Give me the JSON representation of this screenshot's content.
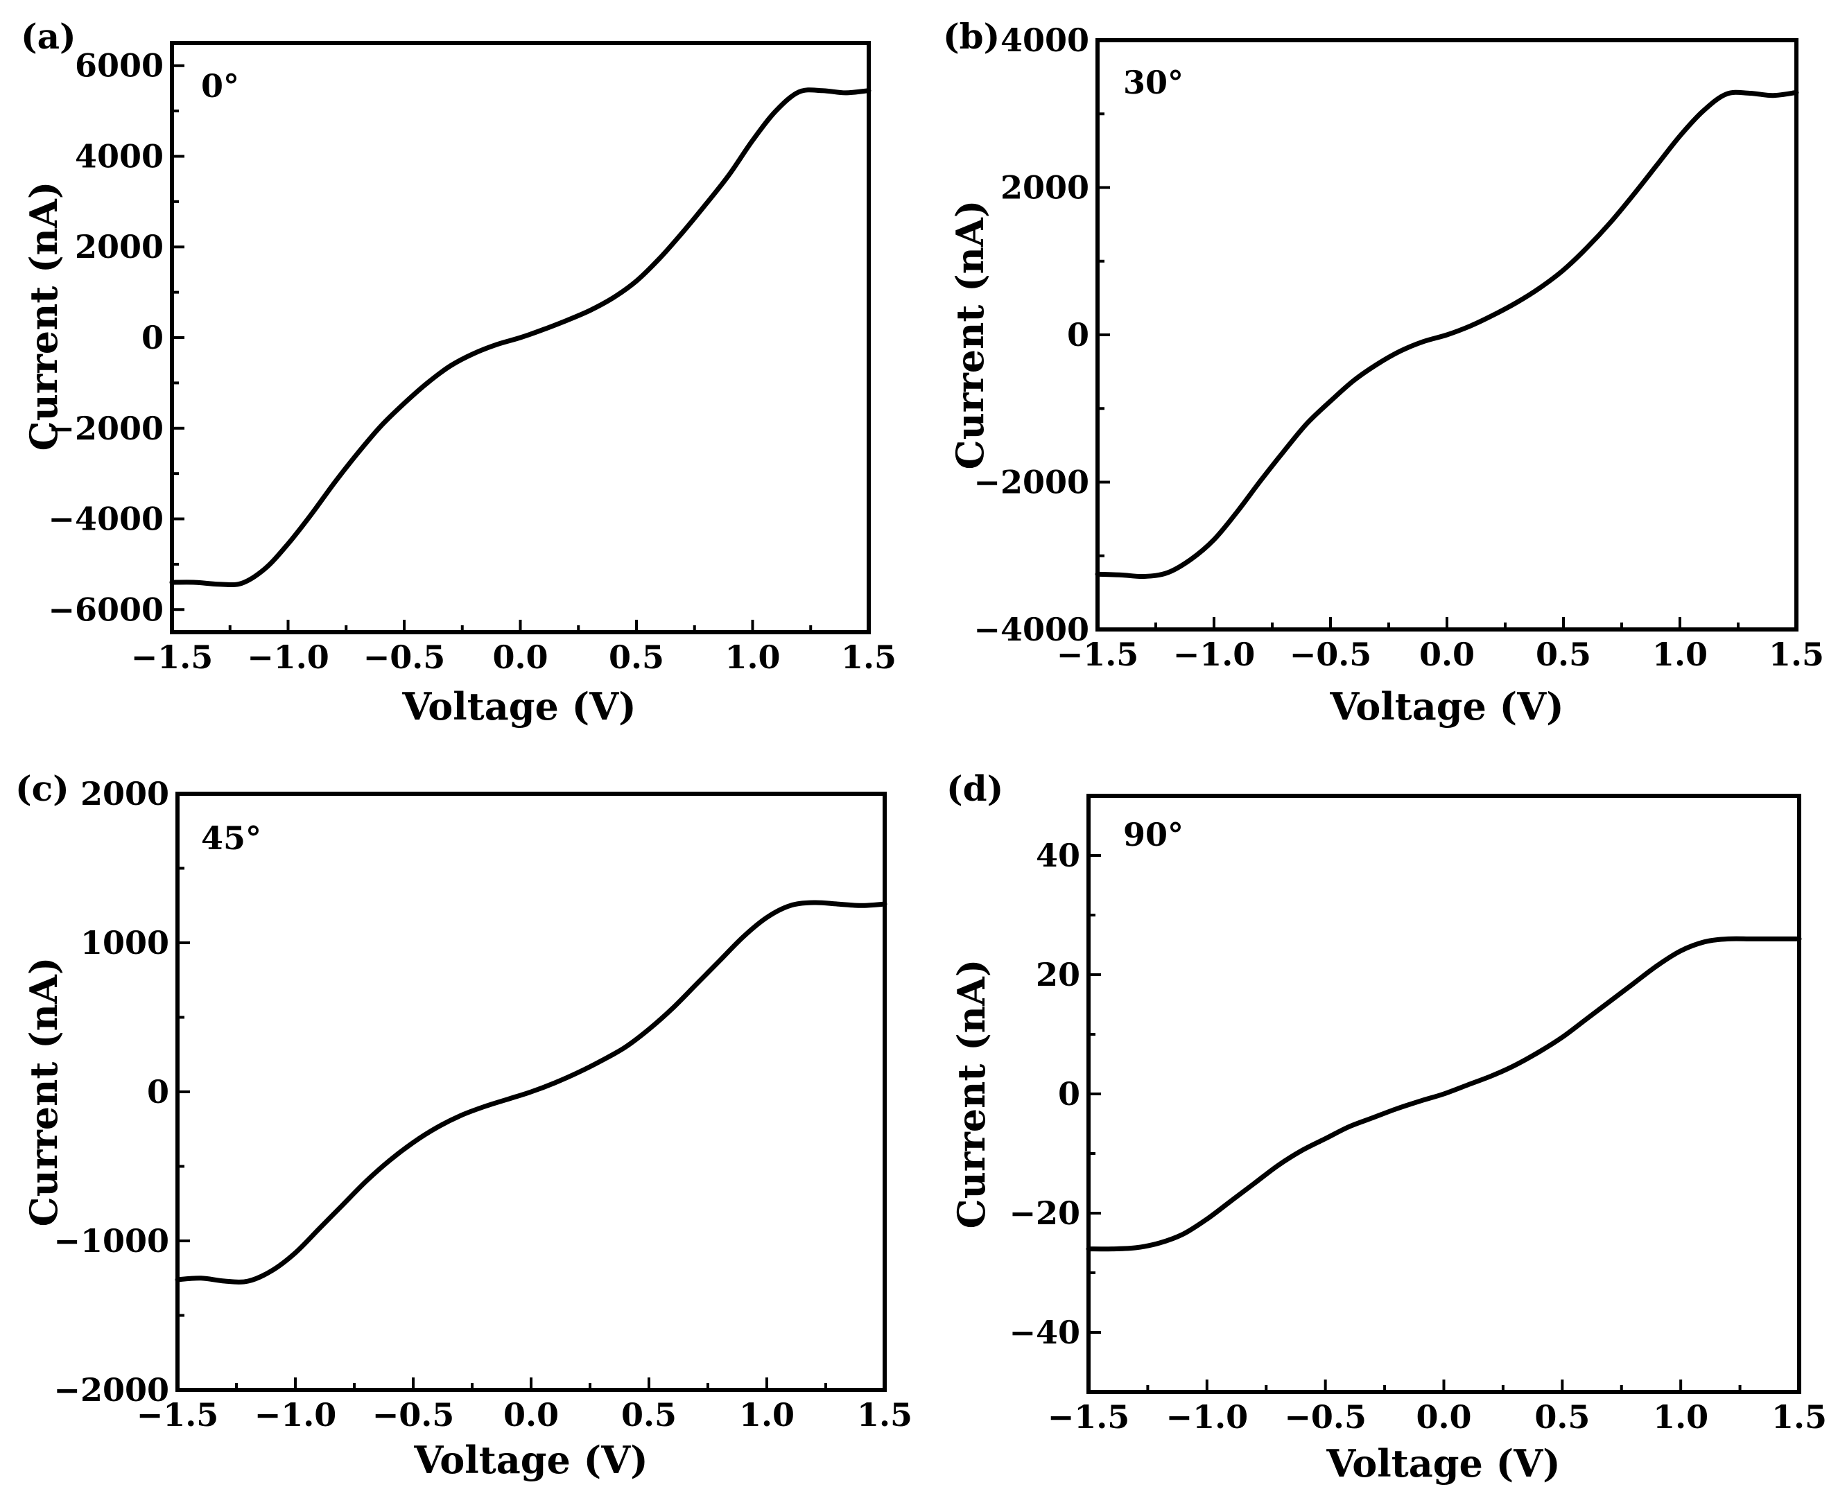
{
  "chart_data": [
    {
      "type": "line",
      "panel": "(a)",
      "annotation": "0°",
      "xlabel": "Voltage (V)",
      "ylabel": "Current (nA)",
      "xlim": [
        -1.5,
        1.5
      ],
      "ylim": [
        -6500,
        6500
      ],
      "xticks": [
        -1.5,
        -1.0,
        -0.5,
        0.0,
        0.5,
        1.0,
        1.5
      ],
      "xtick_labels": [
        "−1.5",
        "−1.0",
        "−0.5",
        "0.0",
        "0.5",
        "1.0",
        "1.5"
      ],
      "yticks": [
        -6000,
        -4000,
        -2000,
        0,
        2000,
        4000,
        6000
      ],
      "ytick_labels": [
        "−6000",
        "−4000",
        "−2000",
        "0",
        "2000",
        "4000",
        "6000"
      ],
      "series": [
        {
          "name": "0°",
          "x": [
            -1.5,
            -1.4,
            -1.3,
            -1.2,
            -1.1,
            -1.0,
            -0.9,
            -0.8,
            -0.7,
            -0.6,
            -0.5,
            -0.4,
            -0.3,
            -0.2,
            -0.1,
            0.0,
            0.1,
            0.2,
            0.3,
            0.4,
            0.5,
            0.6,
            0.7,
            0.8,
            0.9,
            1.0,
            1.1,
            1.2,
            1.3,
            1.4,
            1.5
          ],
          "y": [
            -5400,
            -5400,
            -5440,
            -5420,
            -5100,
            -4550,
            -3900,
            -3200,
            -2550,
            -1950,
            -1450,
            -1000,
            -620,
            -350,
            -150,
            0,
            180,
            380,
            600,
            880,
            1250,
            1750,
            2330,
            2950,
            3600,
            4350,
            5000,
            5420,
            5450,
            5400,
            5450
          ]
        }
      ]
    },
    {
      "type": "line",
      "panel": "(b)",
      "annotation": "30°",
      "xlabel": "Voltage (V)",
      "ylabel": "Current (nA)",
      "xlim": [
        -1.5,
        1.5
      ],
      "ylim": [
        -4000,
        4000
      ],
      "xticks": [
        -1.5,
        -1.0,
        -0.5,
        0.0,
        0.5,
        1.0,
        1.5
      ],
      "xtick_labels": [
        "−1.5",
        "−1.0",
        "−0.5",
        "0.0",
        "0.5",
        "1.0",
        "1.5"
      ],
      "yticks": [
        -4000,
        -2000,
        0,
        2000,
        4000
      ],
      "ytick_labels": [
        "−4000",
        "−2000",
        "0",
        "2000",
        "4000"
      ],
      "series": [
        {
          "name": "30°",
          "x": [
            -1.5,
            -1.4,
            -1.3,
            -1.2,
            -1.1,
            -1.0,
            -0.9,
            -0.8,
            -0.7,
            -0.6,
            -0.5,
            -0.4,
            -0.3,
            -0.2,
            -0.1,
            0.0,
            0.1,
            0.2,
            0.3,
            0.4,
            0.5,
            0.6,
            0.7,
            0.8,
            0.9,
            1.0,
            1.1,
            1.2,
            1.3,
            1.4,
            1.5
          ],
          "y": [
            -3250,
            -3260,
            -3280,
            -3230,
            -3050,
            -2780,
            -2400,
            -1980,
            -1580,
            -1200,
            -900,
            -620,
            -400,
            -220,
            -90,
            0,
            120,
            270,
            440,
            640,
            880,
            1180,
            1520,
            1900,
            2300,
            2700,
            3040,
            3270,
            3280,
            3250,
            3290
          ]
        }
      ]
    },
    {
      "type": "line",
      "panel": "(c)",
      "annotation": "45°",
      "xlabel": "Voltage (V)",
      "ylabel": "Current (nA)",
      "xlim": [
        -1.5,
        1.5
      ],
      "ylim": [
        -2000,
        2000
      ],
      "xticks": [
        -1.5,
        -1.0,
        -0.5,
        0.0,
        0.5,
        1.0,
        1.5
      ],
      "xtick_labels": [
        "−1.5",
        "−1.0",
        "−0.5",
        "0.0",
        "0.5",
        "1.0",
        "1.5"
      ],
      "yticks": [
        -2000,
        -1000,
        0,
        1000,
        2000
      ],
      "ytick_labels": [
        "−2000",
        "−1000",
        "0",
        "1000",
        "2000"
      ],
      "series": [
        {
          "name": "45°",
          "x": [
            -1.5,
            -1.4,
            -1.3,
            -1.2,
            -1.1,
            -1.0,
            -0.9,
            -0.8,
            -0.7,
            -0.6,
            -0.5,
            -0.4,
            -0.3,
            -0.2,
            -0.1,
            0.0,
            0.1,
            0.2,
            0.3,
            0.4,
            0.5,
            0.6,
            0.7,
            0.8,
            0.9,
            1.0,
            1.1,
            1.2,
            1.3,
            1.4,
            1.5
          ],
          "y": [
            -1260,
            -1250,
            -1270,
            -1270,
            -1200,
            -1080,
            -920,
            -760,
            -600,
            -460,
            -340,
            -240,
            -160,
            -100,
            -50,
            0,
            60,
            130,
            210,
            300,
            420,
            560,
            720,
            880,
            1040,
            1170,
            1250,
            1270,
            1260,
            1250,
            1260
          ]
        }
      ]
    },
    {
      "type": "line",
      "panel": "(d)",
      "annotation": "90°",
      "xlabel": "Voltage (V)",
      "ylabel": "Current (nA)",
      "xlim": [
        -1.5,
        1.5
      ],
      "ylim": [
        -50,
        50
      ],
      "xticks": [
        -1.5,
        -1.0,
        -0.5,
        0.0,
        0.5,
        1.0,
        1.5
      ],
      "xtick_labels": [
        "−1.5",
        "−1.0",
        "−0.5",
        "0.0",
        "0.5",
        "1.0",
        "1.5"
      ],
      "yticks": [
        -40,
        -20,
        0,
        20,
        40
      ],
      "ytick_labels": [
        "−40",
        "−20",
        "0",
        "20",
        "40"
      ],
      "series": [
        {
          "name": "90°",
          "x": [
            -1.5,
            -1.4,
            -1.3,
            -1.2,
            -1.1,
            -1.0,
            -0.9,
            -0.8,
            -0.7,
            -0.6,
            -0.5,
            -0.4,
            -0.3,
            -0.2,
            -0.1,
            0.0,
            0.1,
            0.2,
            0.3,
            0.4,
            0.5,
            0.6,
            0.7,
            0.8,
            0.9,
            1.0,
            1.1,
            1.2,
            1.3,
            1.4,
            1.5
          ],
          "y": [
            -26,
            -26,
            -25.8,
            -25,
            -23.5,
            -21,
            -18,
            -15,
            -12,
            -9.5,
            -7.5,
            -5.5,
            -4,
            -2.5,
            -1.2,
            0,
            1.5,
            3,
            4.8,
            7,
            9.5,
            12.5,
            15.5,
            18.5,
            21.5,
            24,
            25.5,
            26,
            26,
            26,
            26
          ]
        }
      ]
    }
  ]
}
